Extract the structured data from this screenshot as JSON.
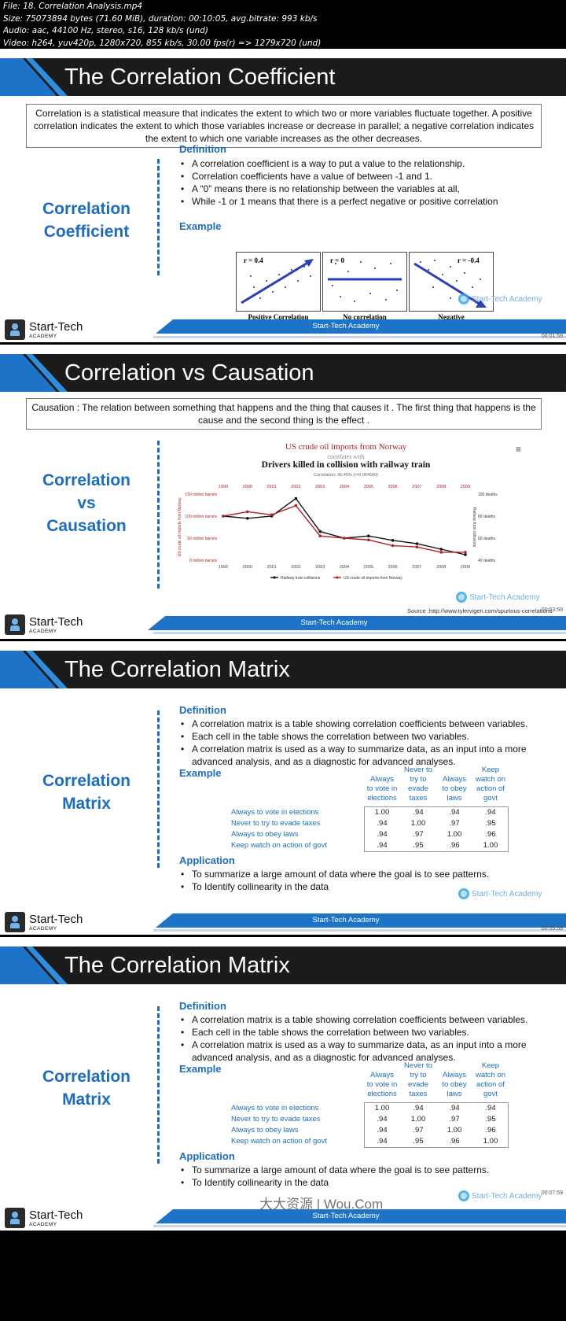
{
  "file_info": {
    "line1": "File: 18. Correlation Analysis.mp4",
    "line2": "Size: 75073894 bytes (71.60 MiB), duration: 00:10:05, avg.bitrate: 993 kb/s",
    "line3": "Audio: aac, 44100 Hz, stereo, s16, 128 kb/s (und)",
    "line4": "Video: h264, yuv420p, 1280x720, 855 kb/s, 30.00 fps(r) => 1279x720 (und)"
  },
  "brand": {
    "logo_name": "Start-Tech",
    "logo_sub": "ACADEMY",
    "footer_text": "Start-Tech Academy",
    "watermark": "Start-Tech Academy"
  },
  "colors": {
    "accent": "#1c6dbf",
    "title_bar": "#1b1b1b",
    "series_black": "#111111",
    "series_red": "#b22222"
  },
  "timestamps": [
    "00:01:59",
    "00:03:59",
    "00:05:59",
    "00:07:59"
  ],
  "slide1": {
    "title": "The Correlation Coefficient",
    "intro": "Correlation is a statistical measure that indicates the extent to which two or more variables fluctuate together. A positive correlation indicates the extent to which those variables increase or decrease in parallel; a negative correlation indicates the extent to which one variable increases as the other decreases.",
    "side_title_1": "Correlation",
    "side_title_2": "Coefficient",
    "definition_heading": "Definition",
    "definition": [
      "A correlation coefficient is a way to put a value to the relationship.",
      "Correlation coefficients have a value of between -1 and 1.",
      "A “0” means there is no relationship between the variables at all,",
      "While -1 or 1 means that there is a perfect negative or positive correlation"
    ],
    "example_heading": "Example",
    "panels": [
      {
        "r_label": "r =  0.4",
        "caption": "Positive Correlation"
      },
      {
        "r_label": "r = 0",
        "caption": "No correlation"
      },
      {
        "r_label": "r = -0.4",
        "caption": "Negative"
      }
    ]
  },
  "slide2": {
    "title": "Correlation vs Causation",
    "intro": "Causation : The relation between something that happens and the thing that causes it . The first thing that happens is the cause and the second thing is the effect .",
    "side_title_1": "Correlation",
    "side_title_2": "vs",
    "side_title_3": "Causation",
    "menu_icon": "≡",
    "source": "Source :http://www.tylervigen.com/spurious-correlations"
  },
  "chart_data": {
    "type": "line",
    "title": "US crude oil imports from Norway",
    "subtitle": "correlates with",
    "title2": "Drivers killed in collision with railway train",
    "annotation": "Correlation: 95.45% (r=0.954509)",
    "x": [
      "1999",
      "2000",
      "2001",
      "2002",
      "2003",
      "2004",
      "2005",
      "2006",
      "2007",
      "2008",
      "2009"
    ],
    "ylabel_left": "US crude oil imports from Norway",
    "ylabel_right": "Railway train collisions",
    "yticks_left": [
      "150 million barrels",
      "100 million barrels",
      "50 million barrels",
      "0 million barrels"
    ],
    "yticks_right": [
      "100 deaths",
      "80 deaths",
      "60 deaths",
      "40 deaths"
    ],
    "ylim_left": [
      0,
      150
    ],
    "ylim_right": [
      40,
      100
    ],
    "series": [
      {
        "name": "Railway train collisions",
        "axis": "right",
        "color": "#111111",
        "values": [
          80,
          78,
          80,
          96,
          66,
          60,
          62,
          58,
          55,
          50,
          45
        ]
      },
      {
        "name": "US crude oil imports from Norway",
        "axis": "left",
        "color": "#b22222",
        "values": [
          100,
          110,
          103,
          124,
          55,
          50,
          46,
          33,
          30,
          18,
          18
        ]
      }
    ],
    "legend": "bottom",
    "grid": false
  },
  "slide3": {
    "title": "The Correlation Matrix",
    "side_title_1": "Correlation",
    "side_title_2": "Matrix",
    "definition_heading": "Definition",
    "definition": [
      "A correlation matrix is a table showing correlation coefficients between variables.",
      "Each cell in the table shows the correlation between two variables.",
      "A correlation matrix is used as a way to summarize data, as an input into a more advanced analysis, and as a diagnostic for advanced analyses."
    ],
    "example_heading": "Example",
    "matrix_columns": [
      [
        "Always",
        "to vote in",
        "elections"
      ],
      [
        "Never to",
        "try to",
        "evade",
        "taxes"
      ],
      [
        "Always",
        "to obey",
        "laws"
      ],
      [
        "Keep",
        "watch on",
        "action of",
        "govt"
      ]
    ],
    "matrix_rows": [
      "Always to vote in elections",
      "Never to try to evade taxes",
      "Always to obey laws",
      "Keep watch on action of govt"
    ],
    "matrix_values": [
      [
        "1.00",
        ".94",
        ".94",
        ".94"
      ],
      [
        ".94",
        "1.00",
        ".97",
        ".95"
      ],
      [
        ".94",
        ".97",
        "1.00",
        ".96"
      ],
      [
        ".94",
        ".95",
        ".96",
        "1.00"
      ]
    ],
    "application_heading": "Application",
    "application": [
      "To summarize a large amount of data where the goal is to see patterns.",
      "To Identify collinearity in the data"
    ]
  },
  "slide4": {
    "overlay_text": "大大资源 | Wou.Com"
  }
}
